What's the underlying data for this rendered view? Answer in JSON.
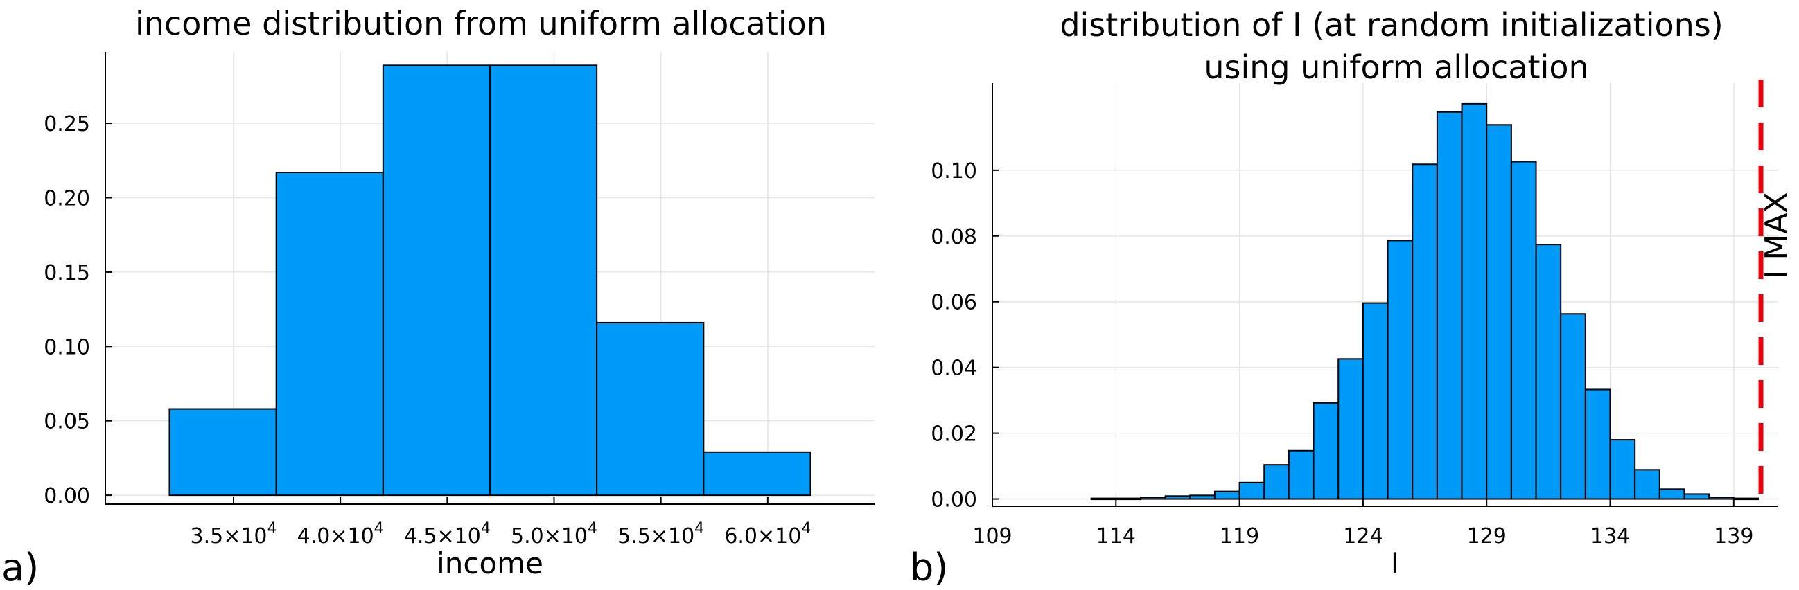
{
  "chart_data": [
    {
      "type": "bar",
      "panel_label": "a)",
      "title": "income distribution from uniform allocation",
      "xlabel": "income",
      "ylabel": "",
      "bin_edges": [
        32000,
        37000,
        42000,
        47000,
        52000,
        57000,
        62000
      ],
      "values": [
        0.058,
        0.217,
        0.289,
        0.289,
        0.116,
        0.029
      ],
      "xlim": [
        29000,
        65000
      ],
      "ylim": [
        -0.006,
        0.298
      ],
      "xticks": [
        {
          "value": 35000,
          "mantissa": "3.5×10",
          "exp": "4"
        },
        {
          "value": 40000,
          "mantissa": "4.0×10",
          "exp": "4"
        },
        {
          "value": 45000,
          "mantissa": "4.5×10",
          "exp": "4"
        },
        {
          "value": 50000,
          "mantissa": "5.0×10",
          "exp": "4"
        },
        {
          "value": 55000,
          "mantissa": "5.5×10",
          "exp": "4"
        },
        {
          "value": 60000,
          "mantissa": "6.0×10",
          "exp": "4"
        }
      ],
      "yticks": [
        {
          "value": 0.0,
          "label": "0.00"
        },
        {
          "value": 0.05,
          "label": "0.05"
        },
        {
          "value": 0.1,
          "label": "0.10"
        },
        {
          "value": 0.15,
          "label": "0.15"
        },
        {
          "value": 0.2,
          "label": "0.20"
        },
        {
          "value": 0.25,
          "label": "0.25"
        }
      ],
      "grid": true,
      "bar_color": "#009af9"
    },
    {
      "type": "bar",
      "panel_label": "b)",
      "title": [
        "distribution of I (at random initializations)",
        "using uniform allocation"
      ],
      "xlabel": "I",
      "ylabel": "",
      "bin_edges": [
        113,
        114,
        115,
        116,
        117,
        118,
        119,
        120,
        121,
        122,
        123,
        124,
        125,
        126,
        127,
        128,
        129,
        130,
        131,
        132,
        133,
        134,
        135,
        136,
        137,
        138,
        139,
        140
      ],
      "values": [
        0.0002,
        0.0002,
        0.0005,
        0.0009,
        0.0011,
        0.0023,
        0.005,
        0.0104,
        0.0147,
        0.0292,
        0.0426,
        0.0596,
        0.0786,
        0.1018,
        0.1177,
        0.1202,
        0.1138,
        0.1026,
        0.0774,
        0.0563,
        0.0333,
        0.018,
        0.0089,
        0.003,
        0.0015,
        0.0005,
        0.0002
      ],
      "xlim": [
        109,
        140.8
      ],
      "ylim": [
        -0.0022,
        0.1265
      ],
      "xticks": [
        {
          "value": 109,
          "label": "109"
        },
        {
          "value": 114,
          "label": "114"
        },
        {
          "value": 119,
          "label": "119"
        },
        {
          "value": 124,
          "label": "124"
        },
        {
          "value": 129,
          "label": "129"
        },
        {
          "value": 134,
          "label": "134"
        },
        {
          "value": 139,
          "label": "139"
        }
      ],
      "yticks": [
        {
          "value": 0.0,
          "label": "0.00"
        },
        {
          "value": 0.02,
          "label": "0.02"
        },
        {
          "value": 0.04,
          "label": "0.04"
        },
        {
          "value": 0.06,
          "label": "0.06"
        },
        {
          "value": 0.08,
          "label": "0.08"
        },
        {
          "value": 0.1,
          "label": "0.10"
        }
      ],
      "grid": true,
      "bar_color": "#009af9",
      "vline": {
        "x": 140.1,
        "label": "I MAX",
        "color": "#e8000b",
        "style": "dashed"
      }
    }
  ]
}
